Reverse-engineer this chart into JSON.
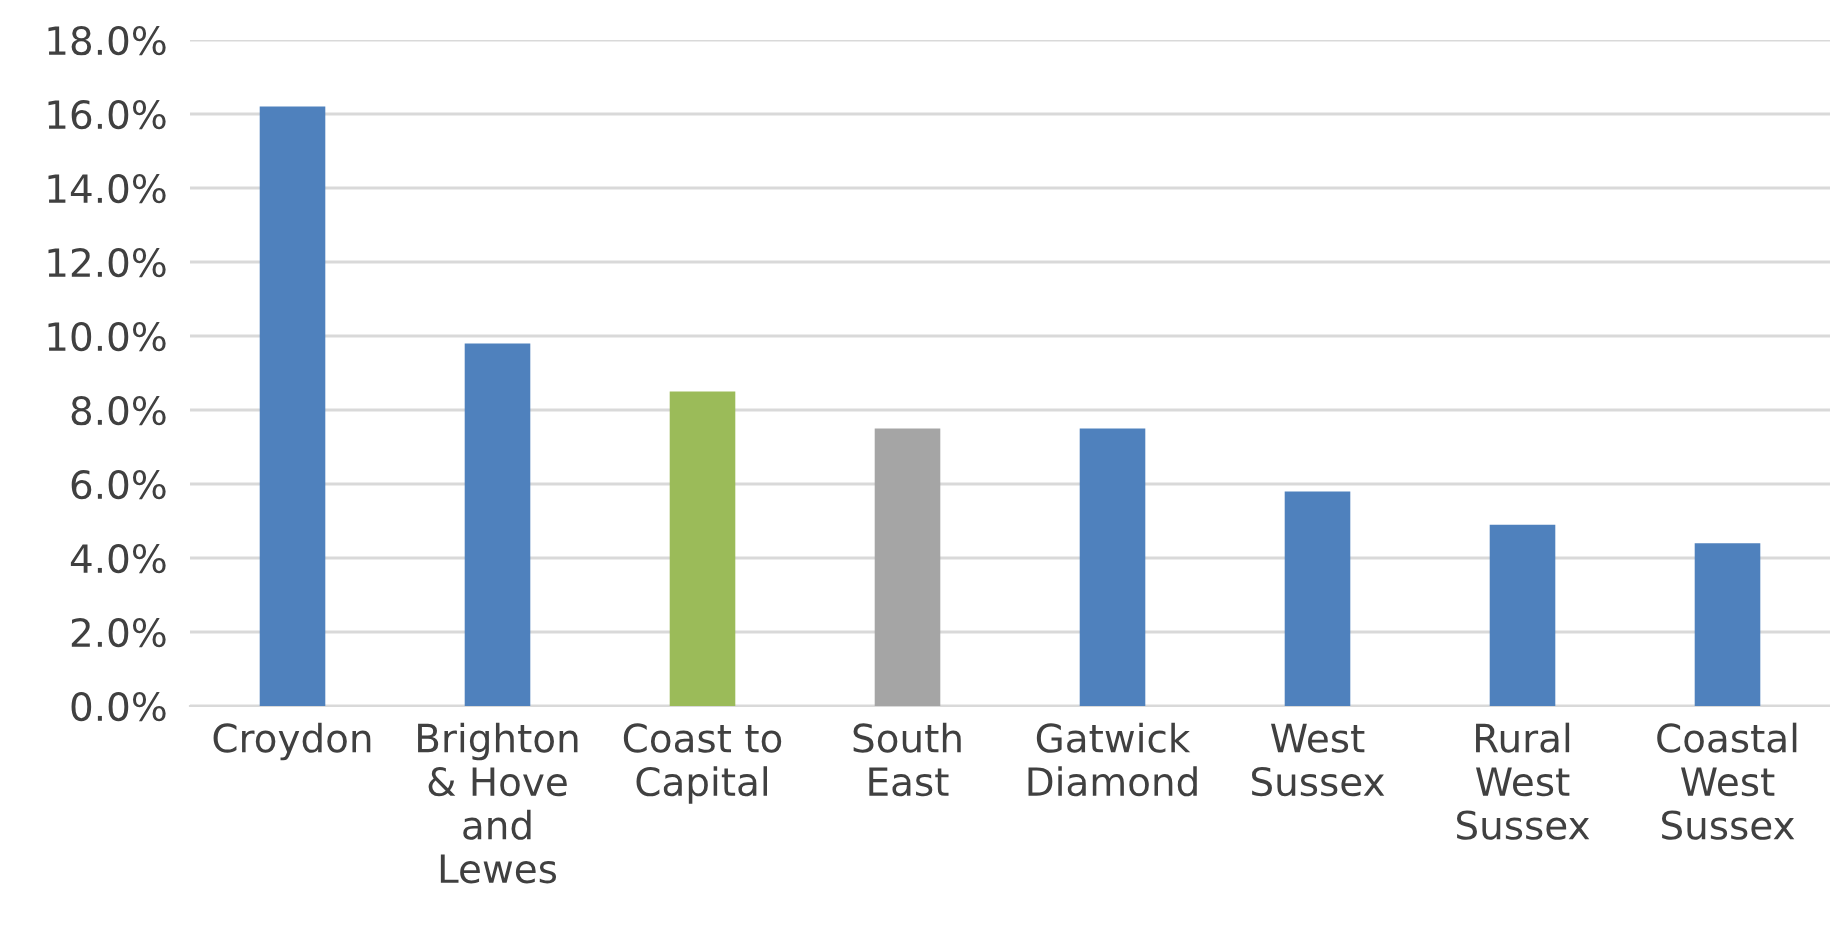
{
  "chart_data": {
    "type": "bar",
    "categories": [
      "Croydon",
      "Brighton & Hove and Lewes",
      "Coast to Capital",
      "South East",
      "Gatwick Diamond",
      "West Sussex",
      "Rural West Sussex",
      "Coastal West Sussex"
    ],
    "values": [
      16.2,
      9.8,
      8.5,
      7.5,
      7.5,
      5.8,
      4.9,
      4.4
    ],
    "colors": [
      "#4f81bd",
      "#4f81bd",
      "#9bbb59",
      "#a5a5a5",
      "#4f81bd",
      "#4f81bd",
      "#4f81bd",
      "#4f81bd"
    ],
    "ylim": [
      0,
      18
    ],
    "yticks": [
      {
        "value": 0,
        "label": "0.0%"
      },
      {
        "value": 2,
        "label": "2.0%"
      },
      {
        "value": 4,
        "label": "4.0%"
      },
      {
        "value": 6,
        "label": "6.0%"
      },
      {
        "value": 8,
        "label": "8.0%"
      },
      {
        "value": 10,
        "label": "10.0%"
      },
      {
        "value": 12,
        "label": "12.0%"
      },
      {
        "value": 14,
        "label": "14.0%"
      },
      {
        "value": 16,
        "label": "16.0%"
      },
      {
        "value": 18,
        "label": "18.0%"
      }
    ],
    "grid": "y"
  }
}
